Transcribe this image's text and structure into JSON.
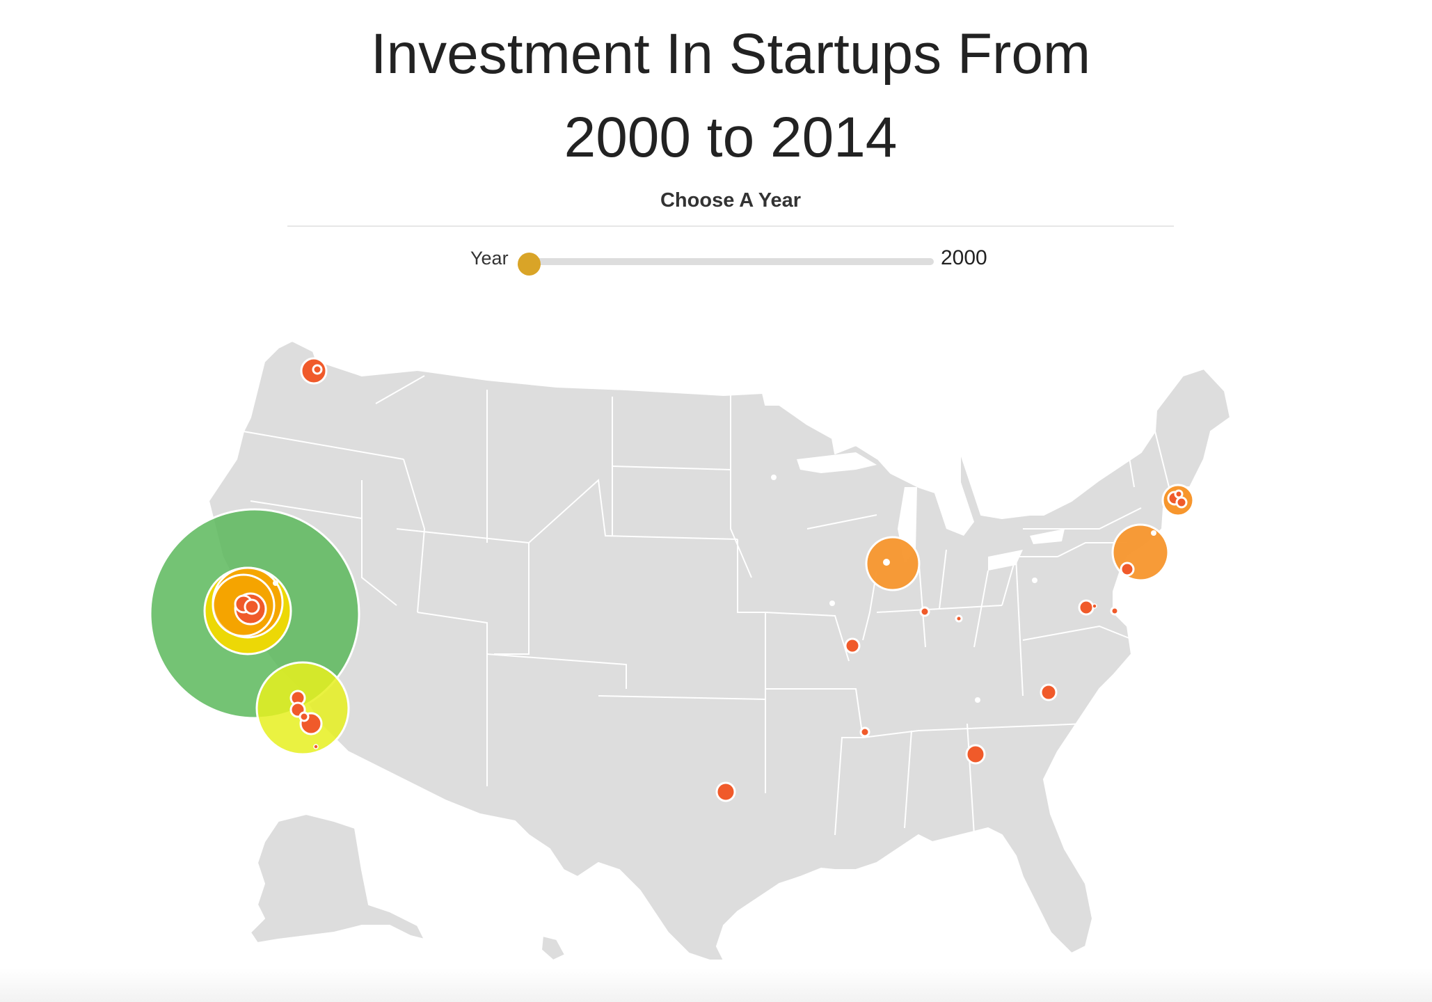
{
  "page": {
    "title_line1": "Investment In Startups From",
    "title_line2": "2000 to 2014"
  },
  "controls": {
    "heading": "Choose A Year",
    "slider_label": "Year",
    "year_value": "2000",
    "year_range": [
      2000,
      2014
    ],
    "handle_color": "#d9a427"
  },
  "map": {
    "land_color": "#dddddd",
    "border_color": "#ffffff",
    "region": "United States",
    "marker_legend_colors": {
      "largest": "#5cb85c",
      "large": "#e6f020",
      "medium": "#f5a300",
      "small": "#f05a2a"
    }
  }
}
